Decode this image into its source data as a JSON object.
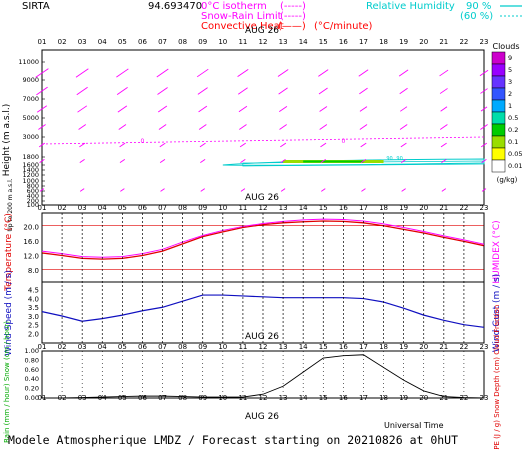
{
  "header": {
    "site": "SIRTA",
    "site_value": "94.693470",
    "legend_isotherm": "0°C isotherm",
    "legend_isotherm_style": "(-----)",
    "legend_snow_rain": "Snow-Rain Limit",
    "legend_snow_rain_style": "(-----)",
    "legend_convective": "Convective Heat",
    "legend_convective_style": "(——)",
    "legend_convective_unit": "(°C/minute)",
    "legend_rh": "Relative Humidity",
    "legend_rh_90": "90 %",
    "legend_rh_60": "(60 %)"
  },
  "colors": {
    "magenta": "#ff00ff",
    "cyan": "#00cccc",
    "red": "#e00000",
    "blue": "#1010c0",
    "green": "#00aa00",
    "black": "#000000"
  },
  "hours": [
    "01",
    "02",
    "03",
    "04",
    "05",
    "06",
    "07",
    "08",
    "09",
    "10",
    "11",
    "12",
    "13",
    "14",
    "15",
    "16",
    "17",
    "18",
    "19",
    "20",
    "21",
    "22",
    "23"
  ],
  "date_label": "AUG 26",
  "clouds": {
    "title": "Clouds",
    "unit": "(g/kg)",
    "levels": [
      "9",
      "5",
      "3",
      "2",
      "1",
      "0.5",
      "0.2",
      "0.1",
      "0.05",
      "0.01"
    ],
    "colors": [
      "#cc00cc",
      "#9900ff",
      "#6633ff",
      "#3355ff",
      "#00aaff",
      "#00ddaa",
      "#00cc00",
      "#99dd00",
      "#ffff00",
      "#ffffff"
    ]
  },
  "chart_data": [
    {
      "type": "wind-barbs",
      "ylabel": "Height (m a.s.l.)",
      "ylabel_sub": "Up to 200 m a.s.l.",
      "yticks": [
        "11000",
        "9000",
        "7000",
        "5000",
        "3000",
        "1800",
        "1600",
        "1400",
        "1200",
        "1000",
        "800",
        "600",
        "400",
        "200",
        "100"
      ],
      "isotherm_height_m": 3500,
      "isotherm_markers": [
        {
          "x": 6,
          "label": "0"
        },
        {
          "x": 16,
          "label": "0"
        }
      ],
      "cloud_layer": {
        "x_start": 10,
        "x_end": 23,
        "height_m": 1500
      },
      "rh_labels": [
        {
          "x": 18.3,
          "label": "90"
        },
        {
          "x": 18.8,
          "label": "90"
        }
      ]
    },
    {
      "type": "line",
      "ylabel": "Temperature (°C)",
      "y2label": "HUMIDEX (°C)",
      "ylim": [
        5,
        24
      ],
      "yticks": [
        "20.0",
        "16.0",
        "12.0",
        "8.0"
      ],
      "series": [
        {
          "name": "Temperature",
          "x": [
            1,
            2,
            3,
            4,
            5,
            6,
            7,
            8,
            9,
            10,
            11,
            12,
            13,
            14,
            15,
            16,
            17,
            18,
            19,
            20,
            21,
            22,
            23
          ],
          "values": [
            13.0,
            12.3,
            11.5,
            11.3,
            11.5,
            12.3,
            13.5,
            15.5,
            17.5,
            18.8,
            20.0,
            20.8,
            21.3,
            21.6,
            21.8,
            21.7,
            21.3,
            20.5,
            19.5,
            18.5,
            17.3,
            16.2,
            15.0
          ]
        },
        {
          "name": "HUMIDEX",
          "x": [
            1,
            2,
            3,
            4,
            5,
            6,
            7,
            8,
            9,
            10,
            11,
            12,
            13,
            14,
            15,
            16,
            17,
            18,
            19,
            20,
            21,
            22,
            23
          ],
          "values": [
            13.5,
            12.8,
            12.0,
            11.8,
            12.0,
            12.8,
            14.0,
            16.0,
            17.8,
            19.2,
            20.3,
            21.1,
            21.7,
            22.1,
            22.3,
            22.2,
            21.8,
            21.0,
            20.0,
            18.9,
            17.7,
            16.6,
            15.4
          ]
        }
      ],
      "reference_lines": [
        8.5,
        20.5
      ]
    },
    {
      "type": "line",
      "ylabel": "Wind Speed (m / s)",
      "y2label": "Wind Gust (m / s)",
      "ylim": [
        1.5,
        5.0
      ],
      "yticks": [
        "4.5",
        "4.0",
        "3.5",
        "3.0",
        "2.5",
        "2.0"
      ],
      "series": [
        {
          "name": "Wind Speed",
          "x": [
            1,
            2,
            3,
            4,
            5,
            6,
            7,
            8,
            9,
            10,
            11,
            12,
            13,
            14,
            15,
            16,
            17,
            18,
            19,
            20,
            21,
            22,
            23
          ],
          "values": [
            3.3,
            3.05,
            2.75,
            2.9,
            3.1,
            3.35,
            3.55,
            3.9,
            4.25,
            4.25,
            4.2,
            4.15,
            4.1,
            4.1,
            4.1,
            4.1,
            4.05,
            3.85,
            3.5,
            3.1,
            2.8,
            2.55,
            2.4
          ]
        }
      ]
    },
    {
      "type": "line",
      "ylabel": "Rain (mm / hour) Snow (cm / hour)",
      "y2label": "CAPE (J / g) Snow Depth (cm) Cloud Fraction",
      "ylim": [
        0,
        1.0
      ],
      "yticks": [
        "1.00",
        "0.80",
        "0.60",
        "0.40",
        "0.20",
        "0.00"
      ],
      "series": [
        {
          "name": "CAPE",
          "x": [
            1,
            2,
            3,
            4,
            5,
            6,
            7,
            8,
            9,
            10,
            11,
            12,
            13,
            14,
            15,
            16,
            17,
            18,
            19,
            20,
            21,
            22,
            23
          ],
          "values": [
            0.0,
            0.0,
            0.01,
            0.02,
            0.03,
            0.04,
            0.04,
            0.03,
            0.02,
            0.02,
            0.02,
            0.08,
            0.25,
            0.55,
            0.85,
            0.9,
            0.92,
            0.65,
            0.38,
            0.15,
            0.03,
            0.01,
            0.0
          ]
        }
      ]
    }
  ],
  "footer": {
    "universal_time": "Universal Time",
    "forecast": "Modele Atmospherique LMDZ / Forecast starting on 20210826 at 0hUT"
  }
}
